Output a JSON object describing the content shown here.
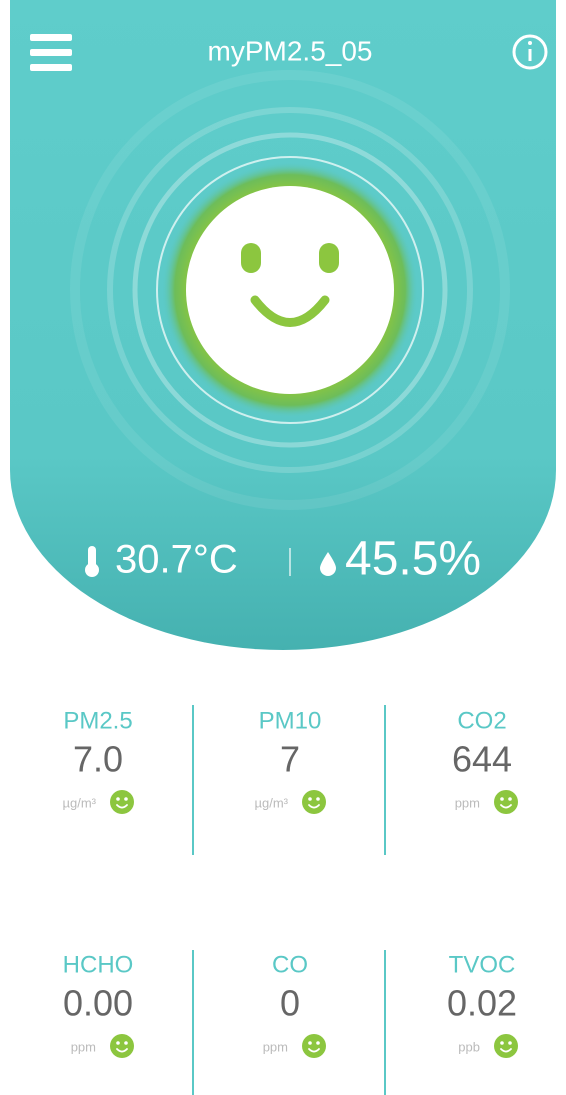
{
  "header": {
    "title": "myPM2.5_05"
  },
  "climate": {
    "temperature": "30.7°C",
    "humidity": "45.5%"
  },
  "sensors": [
    {
      "label": "PM2.5",
      "value": "7.0",
      "unit": "µg/m³"
    },
    {
      "label": "PM10",
      "value": "7",
      "unit": "µg/m³"
    },
    {
      "label": "CO2",
      "value": "644",
      "unit": "ppm"
    },
    {
      "label": "HCHO",
      "value": "0.00",
      "unit": "ppm"
    },
    {
      "label": "CO",
      "value": "0",
      "unit": "ppm"
    },
    {
      "label": "TVOC",
      "value": "0.02",
      "unit": "ppb"
    }
  ]
}
